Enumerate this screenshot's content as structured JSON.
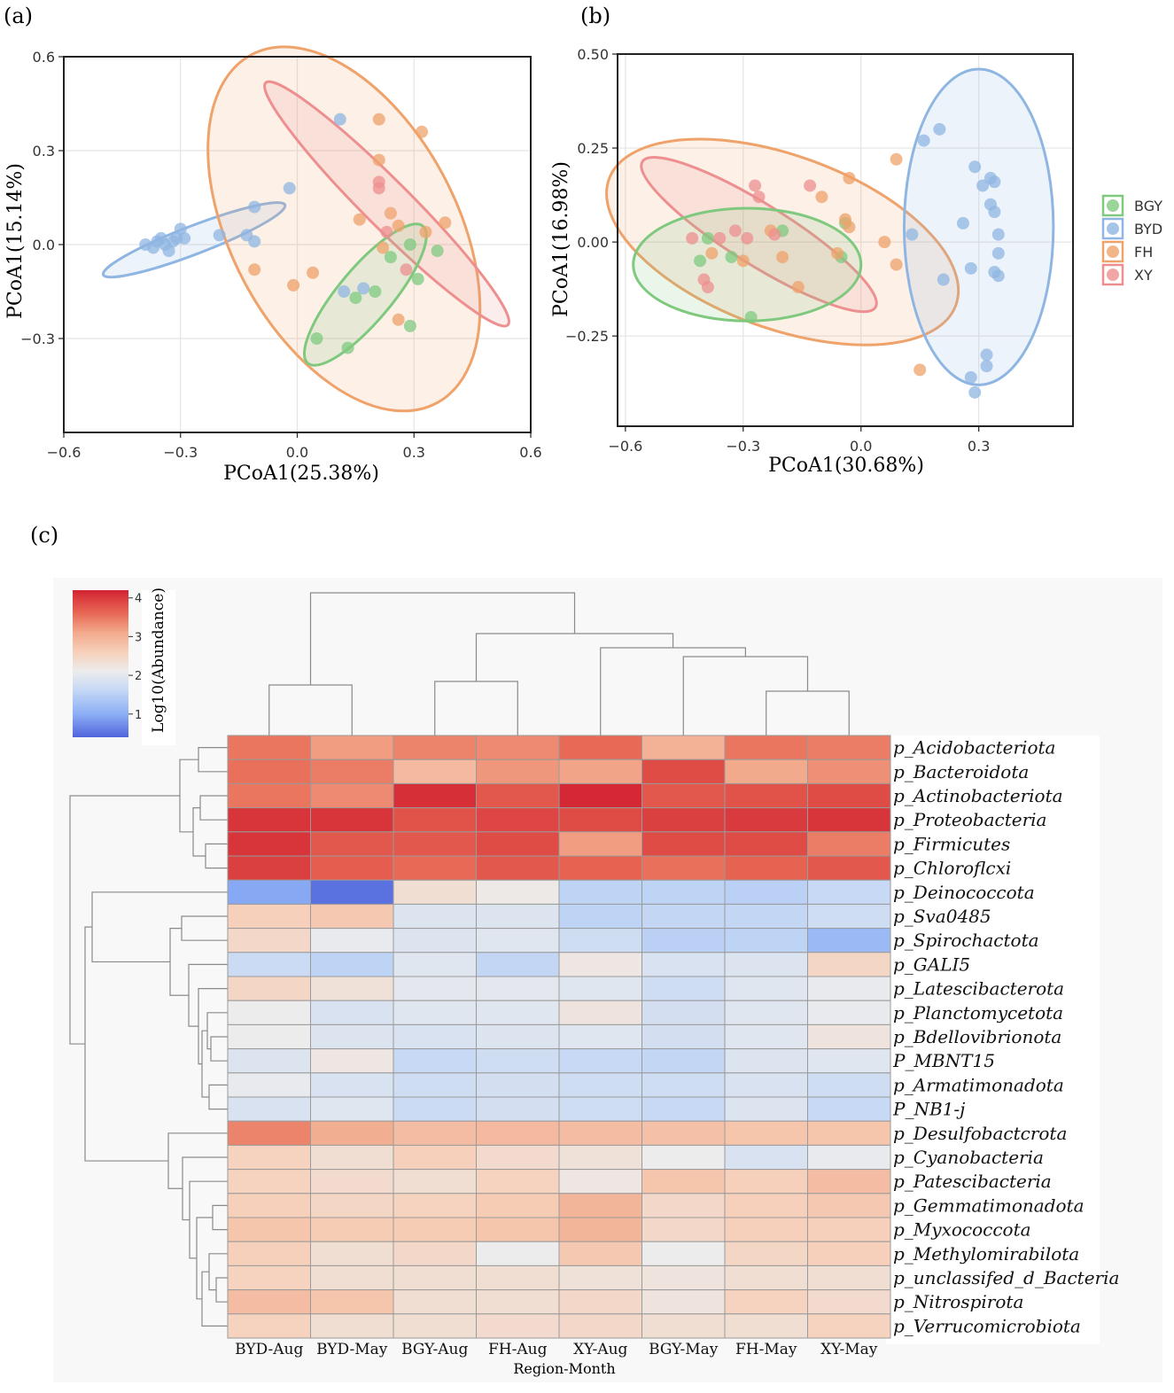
{
  "panel_labels": {
    "a": "(a)",
    "b": "(b)",
    "c": "(c)"
  },
  "colors": {
    "BGY": "#7fc97f",
    "BYD": "#8fb6e2",
    "FH": "#efa26a",
    "XY": "#ee8f8f"
  },
  "chart_data": [
    {
      "type": "scatter",
      "panel": "a",
      "xlabel": "PCoA1(25.38%)",
      "ylabel": "PCoA1(15.14%)",
      "xlim": [
        -0.6,
        0.6
      ],
      "ylim": [
        -0.6,
        0.6
      ],
      "xticks": [
        -0.6,
        -0.3,
        0.0,
        0.3,
        0.6
      ],
      "xtick_labels": [
        "−0.6",
        "−0.3",
        "0.0",
        "0.3",
        "0.6"
      ],
      "yticks": [
        -0.3,
        0.0,
        0.3,
        0.6
      ],
      "ytick_labels": [
        "−0.3",
        "0.0",
        "0.3",
        "0.6"
      ],
      "ellipses": [
        {
          "group": "BYD",
          "cx": -0.265,
          "cy": 0.015,
          "rx": 0.25,
          "ry": 0.045,
          "angle": 21
        },
        {
          "group": "FH",
          "cx": 0.12,
          "cy": 0.05,
          "rx": 0.29,
          "ry": 0.63,
          "angle": 28
        },
        {
          "group": "XY",
          "cx": 0.23,
          "cy": 0.13,
          "rx": 0.44,
          "ry": 0.075,
          "angle": -45
        },
        {
          "group": "BGY",
          "cx": 0.175,
          "cy": -0.16,
          "rx": 0.23,
          "ry": 0.085,
          "angle": 50
        }
      ],
      "series": [
        {
          "name": "BYD",
          "points": [
            [
              -0.39,
              0.0
            ],
            [
              -0.37,
              -0.01
            ],
            [
              -0.36,
              0.01
            ],
            [
              -0.35,
              0.02
            ],
            [
              -0.34,
              0.0
            ],
            [
              -0.33,
              -0.02
            ],
            [
              -0.32,
              0.01
            ],
            [
              -0.31,
              0.02
            ],
            [
              -0.3,
              0.05
            ],
            [
              -0.29,
              0.02
            ],
            [
              -0.2,
              0.03
            ],
            [
              -0.13,
              0.03
            ],
            [
              -0.11,
              0.12
            ],
            [
              -0.11,
              0.01
            ],
            [
              -0.02,
              0.18
            ],
            [
              0.11,
              0.4
            ],
            [
              0.12,
              -0.15
            ],
            [
              0.17,
              -0.14
            ]
          ]
        },
        {
          "name": "FH",
          "points": [
            [
              -0.11,
              -0.08
            ],
            [
              -0.01,
              -0.13
            ],
            [
              0.04,
              -0.09
            ],
            [
              0.16,
              0.08
            ],
            [
              0.21,
              0.4
            ],
            [
              0.21,
              0.27
            ],
            [
              0.22,
              -0.01
            ],
            [
              0.26,
              0.06
            ],
            [
              0.26,
              -0.24
            ],
            [
              0.32,
              0.36
            ],
            [
              0.33,
              0.04
            ],
            [
              0.38,
              0.07
            ],
            [
              0.24,
              0.1
            ]
          ]
        },
        {
          "name": "XY",
          "points": [
            [
              0.21,
              0.18
            ],
            [
              0.21,
              0.2
            ],
            [
              0.28,
              -0.08
            ],
            [
              0.23,
              0.04
            ]
          ]
        },
        {
          "name": "BGY",
          "points": [
            [
              0.05,
              -0.3
            ],
            [
              0.13,
              -0.33
            ],
            [
              0.15,
              -0.17
            ],
            [
              0.2,
              -0.15
            ],
            [
              0.24,
              -0.04
            ],
            [
              0.29,
              0.0
            ],
            [
              0.29,
              -0.26
            ],
            [
              0.31,
              -0.11
            ],
            [
              0.36,
              -0.02
            ]
          ]
        }
      ]
    },
    {
      "type": "scatter",
      "panel": "b",
      "xlabel": "PCoA1(30.68%)",
      "ylabel": "PCoA1(16.98%)",
      "xlim": [
        -0.62,
        0.54
      ],
      "ylim": [
        -0.49,
        0.5
      ],
      "xticks": [
        -0.6,
        -0.3,
        0.0,
        0.3
      ],
      "xtick_labels": [
        "−0.6",
        "−0.3",
        "0.0",
        "0.3"
      ],
      "yticks": [
        -0.25,
        0.0,
        0.25,
        0.5
      ],
      "ytick_labels": [
        "−0.25",
        "0.00",
        "0.25",
        "0.50"
      ],
      "ellipses": [
        {
          "group": "FH",
          "cx": -0.2,
          "cy": 0.0,
          "rx": 0.47,
          "ry": 0.23,
          "angle": -20
        },
        {
          "group": "XY",
          "cx": -0.26,
          "cy": 0.02,
          "rx": 0.35,
          "ry": 0.08,
          "angle": -32
        },
        {
          "group": "BGY",
          "cx": -0.29,
          "cy": -0.06,
          "rx": 0.29,
          "ry": 0.15,
          "angle": 0
        },
        {
          "group": "BYD",
          "cx": 0.3,
          "cy": 0.04,
          "rx": 0.19,
          "ry": 0.42,
          "angle": 0
        }
      ],
      "series": [
        {
          "name": "BGY",
          "points": [
            [
              -0.41,
              -0.05
            ],
            [
              -0.39,
              0.01
            ],
            [
              -0.33,
              -0.04
            ],
            [
              -0.28,
              -0.2
            ],
            [
              -0.2,
              0.03
            ],
            [
              -0.04,
              0.05
            ],
            [
              -0.05,
              -0.04
            ]
          ]
        },
        {
          "name": "BYD",
          "points": [
            [
              0.16,
              0.27
            ],
            [
              0.2,
              0.3
            ],
            [
              0.13,
              0.02
            ],
            [
              0.26,
              0.05
            ],
            [
              0.29,
              0.2
            ],
            [
              0.31,
              0.15
            ],
            [
              0.33,
              0.17
            ],
            [
              0.34,
              0.16
            ],
            [
              0.33,
              0.1
            ],
            [
              0.34,
              0.08
            ],
            [
              0.35,
              0.02
            ],
            [
              0.35,
              -0.03
            ],
            [
              0.34,
              -0.08
            ],
            [
              0.35,
              -0.09
            ],
            [
              0.28,
              -0.07
            ],
            [
              0.21,
              -0.1
            ],
            [
              0.32,
              -0.3
            ],
            [
              0.32,
              -0.33
            ],
            [
              0.28,
              -0.36
            ],
            [
              0.29,
              -0.4
            ]
          ]
        },
        {
          "name": "FH",
          "points": [
            [
              -0.38,
              -0.03
            ],
            [
              -0.3,
              -0.05
            ],
            [
              -0.23,
              0.03
            ],
            [
              -0.2,
              -0.04
            ],
            [
              -0.16,
              -0.12
            ],
            [
              -0.1,
              0.12
            ],
            [
              -0.06,
              -0.03
            ],
            [
              -0.03,
              0.17
            ],
            [
              -0.04,
              0.06
            ],
            [
              -0.03,
              0.04
            ],
            [
              0.06,
              0.0
            ],
            [
              0.09,
              0.22
            ],
            [
              0.09,
              -0.06
            ],
            [
              0.15,
              -0.34
            ]
          ]
        },
        {
          "name": "XY",
          "points": [
            [
              -0.43,
              0.01
            ],
            [
              -0.4,
              -0.1
            ],
            [
              -0.39,
              -0.12
            ],
            [
              -0.36,
              0.01
            ],
            [
              -0.32,
              0.03
            ],
            [
              -0.29,
              0.01
            ],
            [
              -0.27,
              0.15
            ],
            [
              -0.26,
              0.12
            ],
            [
              -0.22,
              0.02
            ],
            [
              -0.13,
              0.15
            ]
          ]
        }
      ],
      "legend": {
        "position": "right",
        "entries": [
          "BGY",
          "BYD",
          "FH",
          "XY"
        ]
      }
    },
    {
      "type": "heatmap",
      "panel": "c",
      "xlabel": "Region-Month",
      "colorbar": {
        "label": "Log10(Abundance)",
        "ticks": [
          1,
          2,
          3,
          4
        ],
        "tick_labels": [
          "1",
          "2",
          "3",
          "4"
        ],
        "range": [
          0.4,
          4.2
        ]
      },
      "columns": [
        "BYD-Aug",
        "BYD-May",
        "BGY-Aug",
        "FH-Aug",
        "XY-Aug",
        "BGY-May",
        "FH-May",
        "XY-May"
      ],
      "rows": [
        "p_Acidobacteriota",
        "p_Bacteroidota",
        "p_Actinobacteriota",
        "p_Proteobacteria",
        "p_Firmicutes",
        "p_Chloroflcxi",
        "p_Deinococcota",
        "p_Sva0485",
        "p_Spirochactota",
        "p_GALI5",
        "p_Latescibacterota",
        "p_Planctomycetota",
        "p_Bdellovibrionota",
        "P_MBNT15",
        "p_Armatimonadota",
        "P_NB1-j",
        "p_Desulfobactcrota",
        "p_Cyanobacteria",
        "p_Patescibacteria",
        "p_Gemmatimonadota",
        "p_Myxococcota",
        "p_Methylomirabilota",
        "p_unclassifed_d_Bacteria",
        "p_Nitrospirota",
        "p_Verrucomicrobiota"
      ],
      "values": [
        [
          3.5,
          3.2,
          3.4,
          3.35,
          3.6,
          3.0,
          3.5,
          3.45
        ],
        [
          3.55,
          3.45,
          2.9,
          3.25,
          3.15,
          3.85,
          3.1,
          3.3
        ],
        [
          3.5,
          3.35,
          4.1,
          3.75,
          4.15,
          3.75,
          3.8,
          3.85
        ],
        [
          4.05,
          4.05,
          3.8,
          3.9,
          3.85,
          3.95,
          4.0,
          4.05
        ],
        [
          4.05,
          3.75,
          3.75,
          3.85,
          3.2,
          3.85,
          3.85,
          3.45
        ],
        [
          3.95,
          3.7,
          3.6,
          3.75,
          3.65,
          3.55,
          3.65,
          3.75
        ],
        [
          0.95,
          0.5,
          2.35,
          2.15,
          1.55,
          1.55,
          1.5,
          1.65
        ],
        [
          2.6,
          2.7,
          1.9,
          1.9,
          1.55,
          1.6,
          1.6,
          1.75
        ],
        [
          2.45,
          2.05,
          1.9,
          1.95,
          1.75,
          1.5,
          1.55,
          1.15
        ],
        [
          1.7,
          1.55,
          1.95,
          1.6,
          2.2,
          1.85,
          1.9,
          2.5
        ],
        [
          2.5,
          2.3,
          2.0,
          2.0,
          1.95,
          1.75,
          1.95,
          2.05
        ],
        [
          2.1,
          1.85,
          1.95,
          1.95,
          2.25,
          1.8,
          1.95,
          2.05
        ],
        [
          2.1,
          1.9,
          1.85,
          1.9,
          1.95,
          1.8,
          1.95,
          2.25
        ],
        [
          1.9,
          2.2,
          1.65,
          1.75,
          1.65,
          1.6,
          1.9,
          1.95
        ],
        [
          2.05,
          1.85,
          1.75,
          1.8,
          1.75,
          1.75,
          1.85,
          1.75
        ],
        [
          1.85,
          1.95,
          1.7,
          1.8,
          1.75,
          1.65,
          1.9,
          1.65
        ],
        [
          3.4,
          3.05,
          2.85,
          2.9,
          2.85,
          2.8,
          2.75,
          2.75
        ],
        [
          2.55,
          2.35,
          2.6,
          2.4,
          2.3,
          2.1,
          1.85,
          2.05
        ],
        [
          2.55,
          2.4,
          2.35,
          2.55,
          2.2,
          2.75,
          2.6,
          2.85
        ],
        [
          2.6,
          2.5,
          2.55,
          2.65,
          2.95,
          2.45,
          2.6,
          2.7
        ],
        [
          2.75,
          2.65,
          2.65,
          2.75,
          2.95,
          2.45,
          2.6,
          2.6
        ],
        [
          2.6,
          2.35,
          2.45,
          2.1,
          2.7,
          2.1,
          2.5,
          2.6
        ],
        [
          2.55,
          2.35,
          2.35,
          2.35,
          2.3,
          2.25,
          2.35,
          2.35
        ],
        [
          2.85,
          2.75,
          2.35,
          2.35,
          2.45,
          2.25,
          2.55,
          2.4
        ],
        [
          2.55,
          2.35,
          2.35,
          2.4,
          2.45,
          2.35,
          2.35,
          2.55
        ]
      ]
    }
  ]
}
